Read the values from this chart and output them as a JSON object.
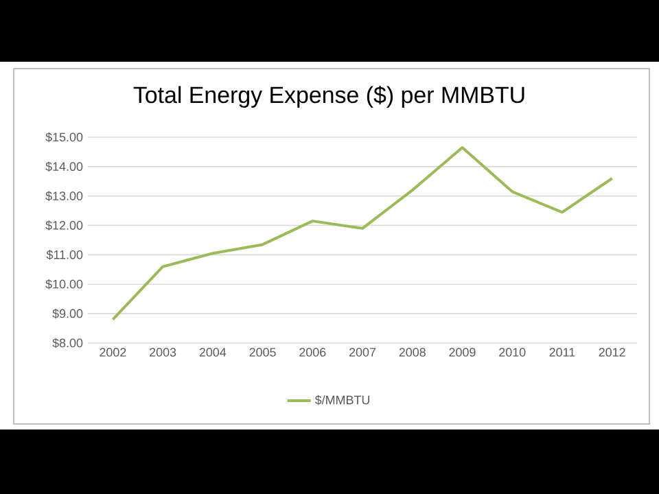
{
  "chart_data": {
    "type": "line",
    "title": "Total Energy Expense ($) per MMBTU",
    "categories": [
      "2002",
      "2003",
      "2004",
      "2005",
      "2006",
      "2007",
      "2008",
      "2009",
      "2010",
      "2011",
      "2012"
    ],
    "series": [
      {
        "name": "$/MMBTU",
        "color": "#9bbb59",
        "values": [
          8.8,
          10.6,
          11.05,
          11.35,
          12.15,
          11.9,
          13.2,
          14.65,
          13.15,
          12.45,
          13.6
        ]
      }
    ],
    "ylim": [
      8,
      15
    ],
    "yticks": [
      {
        "value": 8,
        "label": "$8.00"
      },
      {
        "value": 9,
        "label": "$9.00"
      },
      {
        "value": 10,
        "label": "$10.00"
      },
      {
        "value": 11,
        "label": "$11.00"
      },
      {
        "value": 12,
        "label": "$12.00"
      },
      {
        "value": 13,
        "label": "$13.00"
      },
      {
        "value": 14,
        "label": "$14.00"
      },
      {
        "value": 15,
        "label": "$15.00"
      }
    ],
    "grid": "y",
    "legend": "bottom"
  }
}
